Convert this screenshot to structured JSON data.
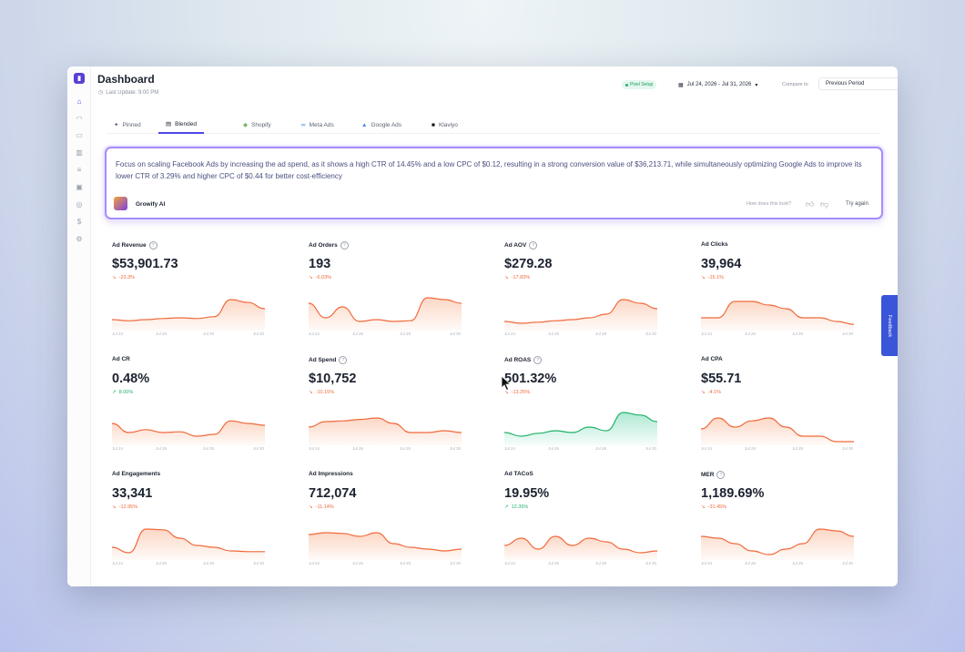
{
  "header": {
    "title": "Dashboard",
    "last_update": "Last Update: 9:00 PM",
    "pixel_badge": "Pixel Setup",
    "date_range": "Jul 24, 2026 - Jul 31, 2026",
    "compare_label": "Compare to",
    "compare_value": "Previous Period"
  },
  "sidebar": {
    "icons": [
      "home-icon",
      "orders-icon",
      "cart-icon",
      "chart-icon",
      "list-icon",
      "ads-icon",
      "people-icon",
      "dollar-icon",
      "settings-icon"
    ]
  },
  "tabs": [
    {
      "label": "Pinned",
      "icon": "pin-icon"
    },
    {
      "label": "Blended",
      "icon": "stack-icon"
    },
    {
      "label": "Shopify",
      "icon": "shopify-icon"
    },
    {
      "label": "Meta Ads",
      "icon": "meta-icon"
    },
    {
      "label": "Google Ads",
      "icon": "google-icon"
    },
    {
      "label": "Klaviyo",
      "icon": "klaviyo-icon"
    }
  ],
  "ai": {
    "text": "Focus on scaling Facebook Ads by increasing the ad spend, as it shows a high CTR of 14.45% and a low CPC of $0.12, resulting in a strong conversion value of $36,213.71, while simultaneously optimizing Google Ads to improve its lower CTR of 3.29% and higher CPC of $0.44 for better cost-efficiency",
    "name": "Growify AI",
    "help": "How does this look?",
    "try_again": "Try again"
  },
  "feedback_label": "Feedback",
  "colors": {
    "down": "#f06a3c",
    "up": "#22b26a",
    "down_fill": "#fbd3bf",
    "up_fill": "#a6e6cf",
    "accent": "#4f46e5"
  },
  "axis_labels": [
    "Jul 24",
    "Jul 26",
    "Jul 28",
    "Jul 30"
  ],
  "metrics": [
    {
      "label": "Ad Revenue",
      "help": true,
      "value": "$53,901.73",
      "change": "-23.3%",
      "trend": "down",
      "series": [
        0.25,
        0.22,
        0.25,
        0.28,
        0.3,
        0.28,
        0.33,
        0.8,
        0.72,
        0.55
      ]
    },
    {
      "label": "Ad Orders",
      "help": true,
      "value": "193",
      "change": "-6.03%",
      "trend": "down",
      "series": [
        0.7,
        0.3,
        0.6,
        0.2,
        0.25,
        0.2,
        0.22,
        0.85,
        0.8,
        0.7
      ]
    },
    {
      "label": "Ad AOV",
      "help": true,
      "value": "$279.28",
      "change": "-17.83%",
      "trend": "down",
      "series": [
        0.2,
        0.15,
        0.18,
        0.22,
        0.25,
        0.3,
        0.4,
        0.8,
        0.7,
        0.55
      ]
    },
    {
      "label": "Ad Clicks",
      "help": false,
      "value": "39,964",
      "change": "-15.1%",
      "trend": "down",
      "series": [
        0.3,
        0.3,
        0.75,
        0.75,
        0.65,
        0.55,
        0.3,
        0.3,
        0.2,
        0.12
      ]
    },
    {
      "label": "Ad CR",
      "help": false,
      "value": "0.48%",
      "change": "8.00%",
      "trend": "up",
      "colorway": "down",
      "series": [
        0.55,
        0.3,
        0.38,
        0.3,
        0.32,
        0.2,
        0.25,
        0.62,
        0.55,
        0.5
      ]
    },
    {
      "label": "Ad Spend",
      "help": true,
      "value": "$10,752",
      "change": "-10.15%",
      "trend": "down",
      "series": [
        0.45,
        0.6,
        0.62,
        0.66,
        0.7,
        0.55,
        0.3,
        0.3,
        0.35,
        0.3
      ]
    },
    {
      "label": "Ad ROAS",
      "help": true,
      "value": "501.32%",
      "change": "-13.25%",
      "trend": "down",
      "colorway": "up",
      "series": [
        0.3,
        0.2,
        0.28,
        0.35,
        0.3,
        0.45,
        0.35,
        0.85,
        0.78,
        0.6
      ]
    },
    {
      "label": "Ad CPA",
      "help": false,
      "value": "$55.71",
      "change": "-4.1%",
      "trend": "down",
      "series": [
        0.4,
        0.7,
        0.45,
        0.62,
        0.7,
        0.45,
        0.2,
        0.2,
        0.05,
        0.05
      ]
    },
    {
      "label": "Ad Engagements",
      "help": false,
      "value": "33,341",
      "change": "-12.95%",
      "trend": "down",
      "series": [
        0.3,
        0.15,
        0.8,
        0.78,
        0.55,
        0.35,
        0.3,
        0.2,
        0.18,
        0.18
      ]
    },
    {
      "label": "Ad Impressions",
      "help": false,
      "value": "712,074",
      "change": "-11.14%",
      "trend": "down",
      "series": [
        0.65,
        0.7,
        0.68,
        0.6,
        0.7,
        0.4,
        0.3,
        0.25,
        0.2,
        0.25
      ]
    },
    {
      "label": "Ad TACoS",
      "help": false,
      "value": "19.95%",
      "change": "12.35%",
      "trend": "up",
      "colorway": "down",
      "series": [
        0.35,
        0.55,
        0.25,
        0.6,
        0.35,
        0.55,
        0.45,
        0.25,
        0.15,
        0.2
      ]
    },
    {
      "label": "MER",
      "help": true,
      "value": "1,189.69%",
      "change": "-31.45%",
      "trend": "down",
      "series": [
        0.6,
        0.55,
        0.4,
        0.2,
        0.1,
        0.25,
        0.4,
        0.8,
        0.75,
        0.6
      ]
    }
  ]
}
